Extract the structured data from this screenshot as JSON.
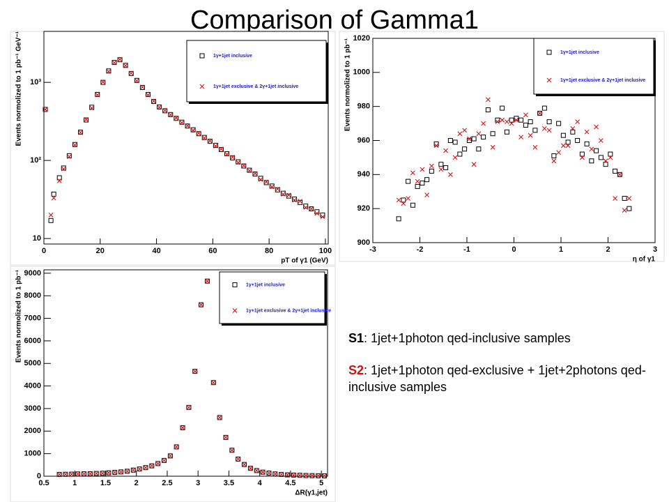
{
  "slide": {
    "title": "Comparison of Gamma1",
    "notes": [
      {
        "label": "S1",
        "text": ": 1jet+1photon qed-inclusive samples"
      },
      {
        "label": "S2",
        "text": ": 1jet+1photon qed-exclusive + 1jet+2photons qed-inclusive samples"
      }
    ]
  },
  "chart_data": [
    {
      "type": "scatter",
      "xlabel": "pT of γ1 (GeV)",
      "ylabel": "Events normolized to 1 pb⁻¹ GeV⁻¹",
      "ylog": true,
      "xlim": [
        0,
        101
      ],
      "ylim": [
        8.5,
        4500
      ],
      "xticks": [
        0,
        20,
        40,
        60,
        80,
        100
      ],
      "yticks": [
        10,
        {
          "value": 100,
          "label": "10²"
        },
        {
          "value": 1000,
          "label": "10³"
        }
      ],
      "x": [
        0.5,
        2.5,
        3.5,
        5.5,
        7,
        9,
        11,
        13,
        15,
        17,
        19,
        21,
        23,
        25,
        27,
        29,
        31,
        33,
        35,
        37,
        39,
        41,
        43,
        45,
        47,
        49,
        51,
        53,
        55,
        57,
        59,
        61,
        63,
        65,
        67,
        69,
        71,
        73,
        75,
        77,
        79,
        81,
        83,
        85,
        87,
        89,
        91,
        93,
        95,
        97,
        99
      ],
      "series": [
        {
          "name": "1γ+1jet inclusive",
          "color": "#000000",
          "marker": "square",
          "values": [
            450,
            17,
            37,
            60,
            80,
            115,
            160,
            230,
            330,
            480,
            700,
            1000,
            1400,
            1800,
            1950,
            1650,
            1300,
            1060,
            860,
            700,
            570,
            484,
            433,
            387,
            346,
            309,
            276,
            247,
            220,
            197,
            176,
            156,
            138,
            122,
            108,
            96,
            85,
            75,
            67,
            59,
            52,
            47,
            42,
            38,
            35,
            32,
            29,
            26,
            24,
            22,
            20
          ]
        },
        {
          "name": "1γ+1jet exclusive & 2γ+1jet inclusive",
          "color": "#dd1111",
          "marker": "x",
          "values": [
            450,
            20,
            33,
            55,
            78,
            112,
            158,
            228,
            335,
            470,
            690,
            1010,
            1380,
            1790,
            1960,
            1640,
            1310,
            1050,
            870,
            690,
            575,
            480,
            436,
            383,
            350,
            305,
            278,
            243,
            223,
            194,
            178,
            153,
            140,
            120,
            110,
            94,
            86,
            74,
            68,
            57,
            53,
            46,
            43,
            37,
            36,
            31,
            30,
            25,
            24,
            21,
            19
          ]
        }
      ]
    },
    {
      "type": "scatter",
      "xlabel": "η of γ1",
      "ylabel": "Events normolized to 1 pb⁻¹",
      "ylog": false,
      "xlim": [
        -3,
        3
      ],
      "ylim": [
        900,
        1020
      ],
      "xticks": [
        -3,
        -2,
        -1,
        0,
        1,
        2,
        3
      ],
      "yticks": [
        900,
        920,
        940,
        960,
        980,
        1000,
        1020
      ],
      "x": [
        -2.45,
        -2.35,
        -2.25,
        -2.15,
        -2.05,
        -1.95,
        -1.85,
        -1.75,
        -1.65,
        -1.55,
        -1.45,
        -1.35,
        -1.25,
        -1.15,
        -1.05,
        -0.95,
        -0.85,
        -0.75,
        -0.65,
        -0.55,
        -0.45,
        -0.35,
        -0.25,
        -0.15,
        -0.05,
        0.05,
        0.15,
        0.25,
        0.35,
        0.45,
        0.55,
        0.65,
        0.75,
        0.85,
        0.95,
        1.05,
        1.15,
        1.25,
        1.35,
        1.45,
        1.55,
        1.65,
        1.75,
        1.85,
        1.95,
        2.05,
        2.15,
        2.25,
        2.35,
        2.45
      ],
      "series": [
        {
          "name": "1γ+1jet inclusive",
          "color": "#000000",
          "marker": "square",
          "values": [
            914,
            925,
            936,
            922,
            933,
            935,
            937,
            942,
            958,
            946,
            944,
            960,
            959,
            952,
            955,
            960,
            961,
            955,
            962,
            978,
            964,
            972,
            979,
            965,
            972,
            973,
            972,
            969,
            971,
            966,
            976,
            979,
            971,
            951,
            970,
            963,
            959,
            965,
            960,
            952,
            958,
            948,
            954,
            950,
            946,
            952,
            942,
            940,
            926,
            920
          ]
        },
        {
          "name": "1γ+1jet exclusive & 2γ+1jet inclusive",
          "color": "#dd1111",
          "marker": "x",
          "values": [
            925,
            923,
            926,
            941,
            936,
            943,
            928,
            945,
            957,
            943,
            954,
            940,
            950,
            964,
            966,
            961,
            946,
            964,
            970,
            984,
            956,
            971,
            972,
            971,
            970,
            972,
            962,
            975,
            963,
            956,
            976,
            967,
            966,
            948,
            953,
            957,
            957,
            967,
            971,
            950,
            965,
            955,
            968,
            960,
            948,
            950,
            926,
            940,
            919,
            926
          ]
        }
      ]
    },
    {
      "type": "scatter",
      "xlabel": "ΔR(γ1,jet)",
      "ylabel": "Events normolized to 1 pb⁻¹",
      "ylog": false,
      "xlim": [
        0.5,
        5.1
      ],
      "ylim": [
        0,
        9150
      ],
      "xticks": [
        0.5,
        1,
        1.5,
        2,
        2.5,
        3,
        3.5,
        4,
        4.5,
        5
      ],
      "yticks": [
        0,
        1000,
        2000,
        3000,
        4000,
        5000,
        6000,
        7000,
        8000,
        9000
      ],
      "x": [
        0.75,
        0.85,
        0.95,
        1.05,
        1.15,
        1.25,
        1.35,
        1.45,
        1.55,
        1.65,
        1.75,
        1.85,
        1.95,
        2.05,
        2.15,
        2.25,
        2.35,
        2.45,
        2.55,
        2.65,
        2.75,
        2.85,
        2.95,
        3.05,
        3.15,
        3.25,
        3.35,
        3.45,
        3.55,
        3.65,
        3.75,
        3.85,
        3.95,
        4.05,
        4.15,
        4.25,
        4.35,
        4.45,
        4.55,
        4.65,
        4.75,
        4.85,
        4.95,
        5.05
      ],
      "series": [
        {
          "name": "1γ+1jet inclusive",
          "color": "#000000",
          "marker": "square",
          "values": [
            80,
            85,
            90,
            100,
            105,
            110,
            120,
            130,
            150,
            170,
            190,
            220,
            270,
            320,
            380,
            460,
            560,
            700,
            900,
            1300,
            2150,
            3050,
            4650,
            7600,
            8650,
            4150,
            2600,
            1720,
            1150,
            760,
            520,
            350,
            250,
            180,
            140,
            100,
            80,
            60,
            50,
            40,
            30,
            25,
            20,
            15
          ]
        },
        {
          "name": "1γ+1jet exclusive & 2γ+1jet inclusive",
          "color": "#dd1111",
          "marker": "x",
          "values": [
            80,
            85,
            90,
            100,
            105,
            110,
            120,
            130,
            150,
            170,
            190,
            220,
            270,
            320,
            380,
            460,
            560,
            700,
            900,
            1300,
            2150,
            3050,
            4650,
            7600,
            8650,
            4150,
            2600,
            1720,
            1150,
            760,
            520,
            350,
            250,
            180,
            140,
            100,
            80,
            60,
            50,
            40,
            30,
            25,
            20,
            15
          ]
        }
      ]
    }
  ]
}
